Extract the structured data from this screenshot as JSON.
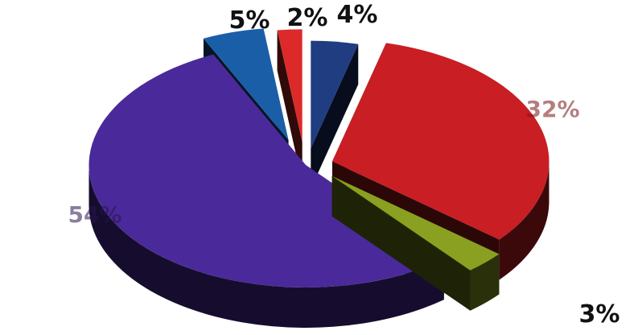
{
  "chart_data": {
    "type": "pie",
    "style": "3d-exploded",
    "title": "",
    "legend": "none",
    "slices": [
      {
        "label": "4%",
        "value": 4,
        "color": "#1f3d80"
      },
      {
        "label": "32%",
        "value": 32,
        "color": "#c81e24"
      },
      {
        "label": "3%",
        "value": 3,
        "color": "#8aa020"
      },
      {
        "label": "54%",
        "value": 54,
        "color": "#4a2a9a"
      },
      {
        "label": "5%",
        "value": 5,
        "color": "#1a5ea8"
      },
      {
        "label": "2%",
        "value": 2,
        "color": "#dc2a2a"
      }
    ]
  }
}
